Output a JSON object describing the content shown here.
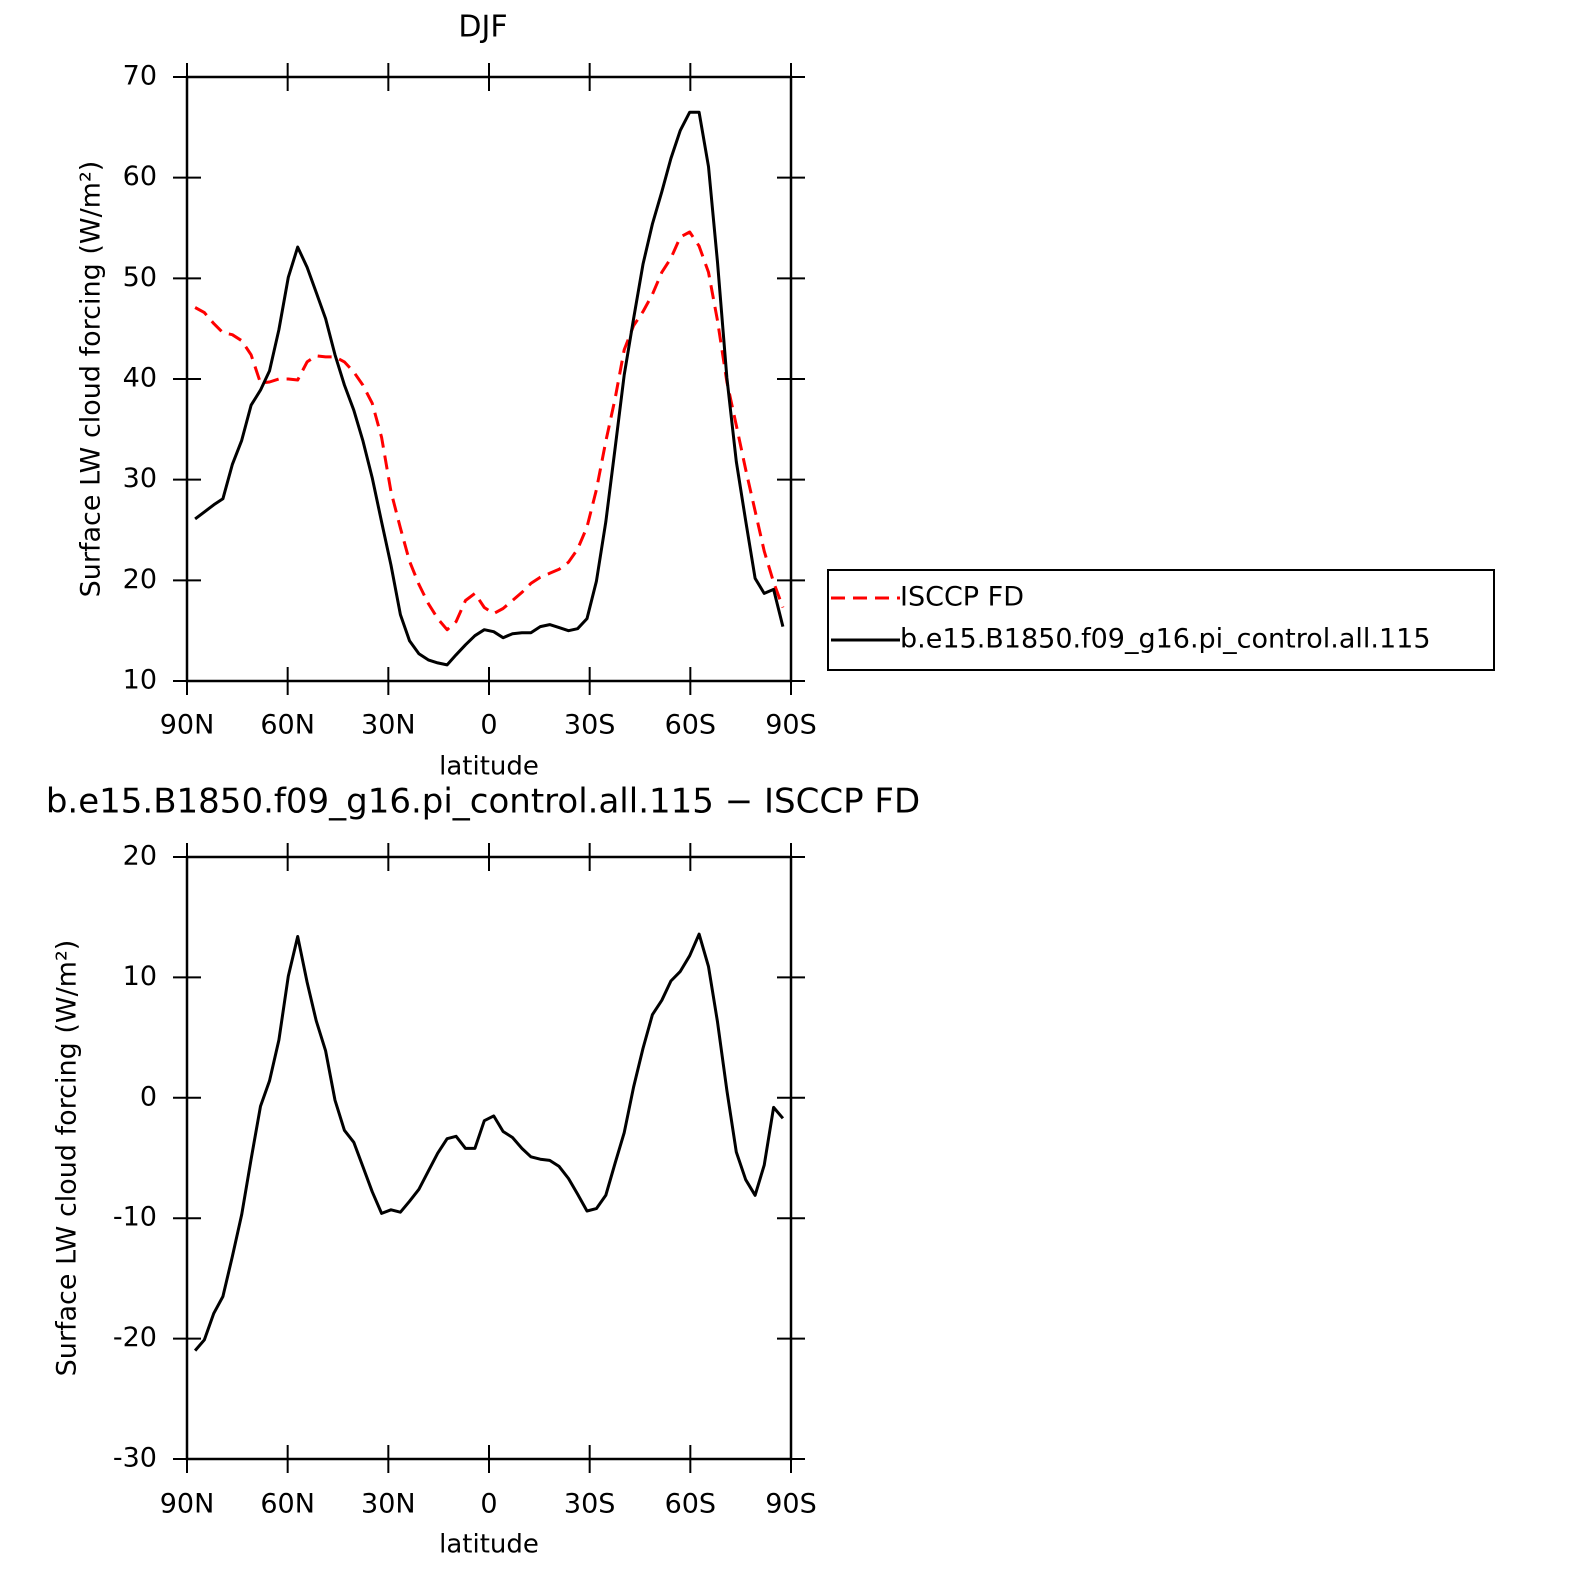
{
  "chart_data": [
    {
      "type": "line",
      "title": "DJF",
      "xlabel": "latitude",
      "ylabel": "Surface LW cloud forcing (W/m²)",
      "x": [
        87.6,
        84.8,
        82.0,
        79.3,
        76.5,
        73.7,
        70.9,
        68.1,
        65.4,
        62.6,
        59.8,
        57.0,
        54.2,
        51.5,
        48.7,
        45.9,
        43.1,
        40.3,
        37.6,
        34.8,
        32.0,
        29.2,
        26.4,
        23.7,
        20.9,
        18.1,
        15.3,
        12.5,
        9.8,
        7.0,
        4.2,
        1.4,
        -1.4,
        -4.2,
        -7.0,
        -9.8,
        -12.5,
        -15.3,
        -18.1,
        -20.9,
        -23.7,
        -26.4,
        -29.2,
        -32.0,
        -34.8,
        -37.6,
        -40.3,
        -43.1,
        -45.9,
        -48.7,
        -51.5,
        -54.2,
        -57.0,
        -59.8,
        -62.6,
        -65.4,
        -68.1,
        -70.9,
        -73.7,
        -76.5,
        -79.3,
        -82.0,
        -84.8,
        -87.6
      ],
      "series": [
        {
          "name": "ISCCP FD",
          "color": "#ff0000",
          "dash": true,
          "values": [
            47.1,
            46.6,
            45.5,
            44.6,
            44.4,
            43.8,
            42.4,
            39.6,
            39.7,
            40,
            40,
            39.9,
            41.7,
            42.3,
            42.2,
            42.2,
            41.7,
            40.7,
            39.4,
            37.6,
            34.2,
            28.8,
            25.2,
            21.9,
            19.6,
            17.7,
            16.2,
            15.1,
            15.9,
            18,
            18.7,
            17.3,
            16.7,
            17.2,
            18,
            18.8,
            19.7,
            20.3,
            20.7,
            21.1,
            21.8,
            23.1,
            25.3,
            29,
            33.8,
            38.1,
            42.9,
            45.3,
            46.7,
            48.4,
            50.6,
            52,
            54.1,
            54.6,
            53.2,
            50.6,
            45.8,
            39.7,
            35.4,
            31,
            26.9,
            22.9,
            19.8,
            17.3
          ]
        },
        {
          "name": "b.e15.B1850.f09_g16.pi_control.all.115",
          "color": "#000000",
          "dash": false,
          "values": [
            26.1,
            26.8,
            27.5,
            28.1,
            31.5,
            33.9,
            37.4,
            38.9,
            40.8,
            44.9,
            50.1,
            53.1,
            51.1,
            48.6,
            46,
            42.4,
            39.4,
            36.9,
            33.9,
            30.2,
            25.8,
            21.5,
            16.6,
            14,
            12.7,
            12.1,
            11.8,
            11.6,
            12.6,
            13.6,
            14.5,
            15.1,
            14.9,
            14.3,
            14.7,
            14.8,
            14.8,
            15.4,
            15.6,
            15.3,
            15,
            15.2,
            16.2,
            19.9,
            25.8,
            33.2,
            40.4,
            46,
            51.4,
            55.4,
            58.6,
            61.9,
            64.7,
            66.5,
            66.5,
            61.1,
            51.6,
            40.1,
            31.8,
            25.9,
            20.2,
            18.7,
            19.1,
            15.4
          ]
        }
      ],
      "xlim": [
        90,
        -90
      ],
      "xticks": [
        {
          "value": 90,
          "label": "90N"
        },
        {
          "value": 60,
          "label": "60N"
        },
        {
          "value": 30,
          "label": "30N"
        },
        0,
        {
          "value": -30,
          "label": "30S"
        },
        {
          "value": -60,
          "label": "60S"
        },
        {
          "value": -90,
          "label": "90S"
        }
      ],
      "ylim": [
        10,
        70
      ],
      "yticks": [
        10,
        20,
        30,
        40,
        50,
        60,
        70
      ],
      "legend": "right"
    },
    {
      "type": "line",
      "title": "b.e15.B1850.f09_g16.pi_control.all.115 − ISCCP FD",
      "xlabel": "latitude",
      "ylabel": "Surface LW cloud forcing (W/m²)",
      "x": [
        87.6,
        84.8,
        82.0,
        79.3,
        76.5,
        73.7,
        70.9,
        68.1,
        65.4,
        62.6,
        59.8,
        57.0,
        54.2,
        51.5,
        48.7,
        45.9,
        43.1,
        40.3,
        37.6,
        34.8,
        32.0,
        29.2,
        26.4,
        23.7,
        20.9,
        18.1,
        15.3,
        12.5,
        9.8,
        7.0,
        4.2,
        1.4,
        -1.4,
        -4.2,
        -7.0,
        -9.8,
        -12.5,
        -15.3,
        -18.1,
        -20.9,
        -23.7,
        -26.4,
        -29.2,
        -32.0,
        -34.8,
        -37.6,
        -40.3,
        -43.1,
        -45.9,
        -48.7,
        -51.5,
        -54.2,
        -57.0,
        -59.8,
        -62.6,
        -65.4,
        -68.1,
        -70.9,
        -73.7,
        -76.5,
        -79.3,
        -82.0,
        -84.8,
        -87.6
      ],
      "series": [
        {
          "color": "#000000",
          "dash": false,
          "values": [
            -21,
            -20.1,
            -17.9,
            -16.5,
            -13.2,
            -9.7,
            -5.1,
            -0.7,
            1.4,
            4.8,
            10.1,
            13.4,
            9.6,
            6.4,
            3.9,
            -0.2,
            -2.7,
            -3.7,
            -5.7,
            -7.8,
            -9.6,
            -9.3,
            -9.5,
            -8.6,
            -7.6,
            -6.1,
            -4.6,
            -3.4,
            -3.2,
            -4.2,
            -4.2,
            -1.9,
            -1.5,
            -2.8,
            -3.3,
            -4.2,
            -4.9,
            -5.1,
            -5.2,
            -5.7,
            -6.7,
            -8,
            -9.4,
            -9.2,
            -8.1,
            -5.4,
            -2.9,
            0.9,
            4.1,
            6.9,
            8.1,
            9.7,
            10.5,
            11.8,
            13.6,
            10.9,
            6.3,
            0.6,
            -4.5,
            -6.8,
            -8.1,
            -5.6,
            -0.8,
            -1.7
          ]
        }
      ],
      "xlim": [
        90,
        -90
      ],
      "xticks": [
        {
          "value": 90,
          "label": "90N"
        },
        {
          "value": 60,
          "label": "60N"
        },
        {
          "value": 30,
          "label": "30N"
        },
        0,
        {
          "value": -30,
          "label": "30S"
        },
        {
          "value": -60,
          "label": "60S"
        },
        {
          "value": -90,
          "label": "90S"
        }
      ],
      "ylim": [
        -30,
        20
      ],
      "yticks": [
        -30,
        -20,
        -10,
        0,
        10,
        20
      ]
    }
  ]
}
